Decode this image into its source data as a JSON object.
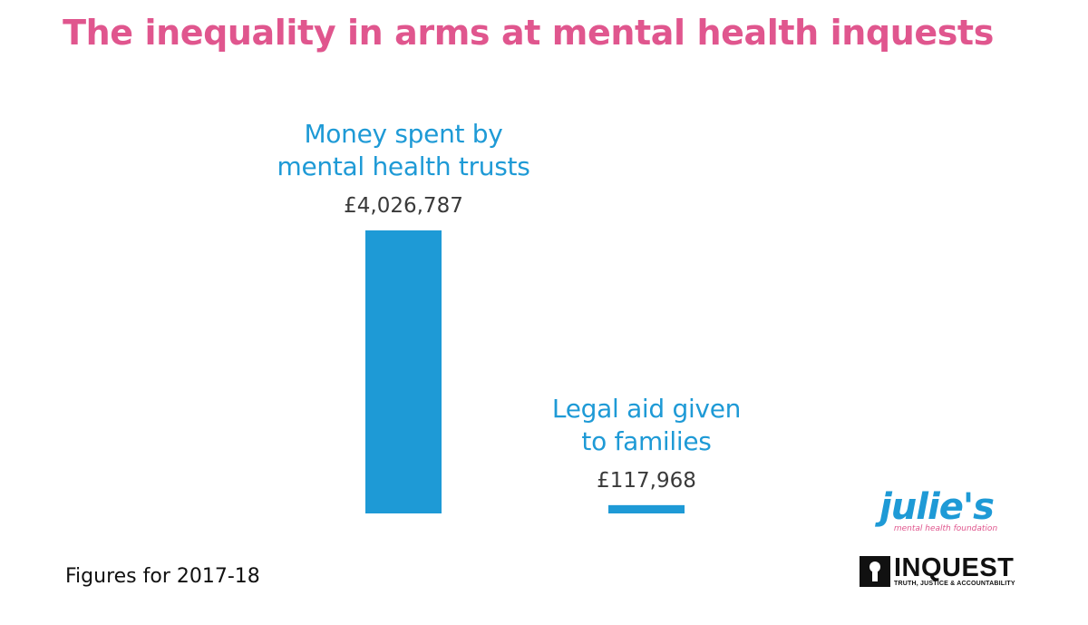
{
  "chart_data": {
    "type": "bar",
    "title": "The inequality in arms at mental health inquests",
    "categories": [
      "Money spent by mental health trusts",
      "Legal aid given to families"
    ],
    "category_lines": [
      [
        "Money spent by",
        "mental health trusts"
      ],
      [
        "Legal aid given",
        "to families"
      ]
    ],
    "values": [
      4026787,
      117968
    ],
    "value_labels": [
      "£4,026,787",
      "£117,968"
    ],
    "xlabel": "",
    "ylabel": "",
    "ylim": [
      0,
      4026787
    ],
    "grid": false,
    "legend": "none",
    "bar_color": "#1e9ad6"
  },
  "footnote": "Figures for 2017-18",
  "logos": {
    "julies": {
      "name": "julie's",
      "tagline": "mental health foundation"
    },
    "inquest": {
      "name": "INQUEST",
      "tagline": "TRUTH, JUSTICE & ACCOUNTABILITY"
    }
  },
  "colors": {
    "title": "#e0568e",
    "accent": "#1e9ad6",
    "value_text": "#3a3a3a"
  }
}
